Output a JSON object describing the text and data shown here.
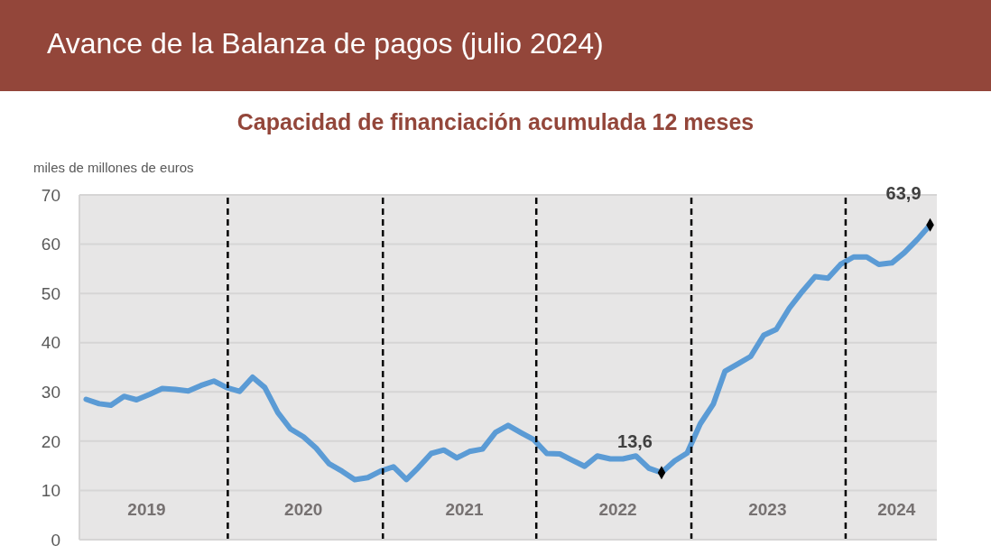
{
  "chart_data": {
    "type": "line",
    "title": "Avance de la Balanza de pagos (julio 2024)",
    "subtitle": "Capacidad de financiación acumulada 12 meses",
    "ylabel": "miles de millones de euros",
    "x": [
      "2019-01",
      "2019-02",
      "2019-03",
      "2019-04",
      "2019-05",
      "2019-06",
      "2019-07",
      "2019-08",
      "2019-09",
      "2019-10",
      "2019-11",
      "2019-12",
      "2020-01",
      "2020-02",
      "2020-03",
      "2020-04",
      "2020-05",
      "2020-06",
      "2020-07",
      "2020-08",
      "2020-09",
      "2020-10",
      "2020-11",
      "2020-12",
      "2021-01",
      "2021-02",
      "2021-03",
      "2021-04",
      "2021-05",
      "2021-06",
      "2021-07",
      "2021-08",
      "2021-09",
      "2021-10",
      "2021-11",
      "2021-12",
      "2022-01",
      "2022-02",
      "2022-03",
      "2022-04",
      "2022-05",
      "2022-06",
      "2022-07",
      "2022-08",
      "2022-09",
      "2022-10",
      "2022-11",
      "2022-12",
      "2023-01",
      "2023-02",
      "2023-03",
      "2023-04",
      "2023-05",
      "2023-06",
      "2023-07",
      "2023-08",
      "2023-09",
      "2023-10",
      "2023-11",
      "2023-12",
      "2024-01",
      "2024-02",
      "2024-03",
      "2024-04",
      "2024-05",
      "2024-06",
      "2024-07"
    ],
    "series": [
      {
        "color": "#5b9bd5",
        "values": [
          28.5,
          27.6,
          27.3,
          29.1,
          28.4,
          29.5,
          30.7,
          30.5,
          30.2,
          31.3,
          32.2,
          30.9,
          30.1,
          33.0,
          30.9,
          25.8,
          22.5,
          20.9,
          18.6,
          15.4,
          13.9,
          12.2,
          12.6,
          13.9,
          14.8,
          12.2,
          14.6,
          17.5,
          18.2,
          16.6,
          17.9,
          18.4,
          21.8,
          23.2,
          21.7,
          20.3,
          17.5,
          17.4,
          16.2,
          14.9,
          17.0,
          16.4,
          16.4,
          17.0,
          14.5,
          13.6,
          16.0,
          17.6,
          23.5,
          27.5,
          34.2,
          35.7,
          37.2,
          41.5,
          42.7,
          47.0,
          50.4,
          53.4,
          53.1,
          55.9,
          57.4,
          57.4,
          55.9,
          56.2,
          58.3,
          61.0,
          63.9
        ]
      },
      {
        "type": "scatter",
        "x": [
          "2022-10",
          "2024-07"
        ],
        "values": [
          13.6,
          63.9
        ],
        "color": "#000000",
        "marker": "diamond",
        "value_labels": [
          "13,6",
          "63,9"
        ]
      }
    ],
    "xlim": [
      "2018-12-16",
      "2024-07-17"
    ],
    "xticks": [
      {
        "value": "2019-05-25",
        "label": "2019"
      },
      {
        "value": "2020-06-01",
        "label": "2020"
      },
      {
        "value": "2021-06-19",
        "label": "2021"
      },
      {
        "value": "2022-06-19",
        "label": "2022"
      },
      {
        "value": "2023-06-10",
        "label": "2023"
      },
      {
        "value": "2024-04-12",
        "label": "2024"
      }
    ],
    "ylim": [
      0,
      70
    ],
    "yticks": [
      0,
      10,
      20,
      30,
      40,
      50,
      60,
      70
    ],
    "grid": "y",
    "ref_lines": [
      {
        "axis": "x",
        "value": "2019-12-04",
        "color": "#000000",
        "line_style": "dashed"
      },
      {
        "axis": "x",
        "value": "2020-12-07",
        "color": "#000000",
        "line_style": "dashed"
      },
      {
        "axis": "x",
        "value": "2021-12-07",
        "color": "#000000",
        "line_style": "dashed"
      },
      {
        "axis": "x",
        "value": "2022-12-11",
        "color": "#000000",
        "line_style": "dashed"
      },
      {
        "axis": "x",
        "value": "2023-12-13",
        "color": "#000000",
        "line_style": "dashed"
      }
    ]
  }
}
